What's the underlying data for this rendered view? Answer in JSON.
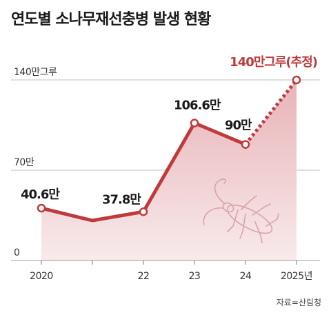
{
  "title": "연도별 소나무재선충병 발생 현황",
  "source": "자료=산림청",
  "colors": {
    "line": "#c0393b",
    "fill_top": "#e8b3b7",
    "fill_bottom": "#f8eaeb",
    "beetle": "#d9a3a6"
  },
  "chart_data": {
    "type": "line",
    "title": "연도별 소나무재선충병 발생 현황",
    "unit": "만그루",
    "ylim": [
      0,
      140
    ],
    "y_ticks": [
      {
        "value": 140,
        "label": "140만그루"
      },
      {
        "value": 70,
        "label": "70만"
      },
      {
        "value": 0,
        "label": "0"
      }
    ],
    "x": [
      2020,
      2021,
      2022,
      2023,
      2024,
      2025
    ],
    "x_tick_labels": [
      "2020",
      "",
      "22",
      "23",
      "24",
      "2025년"
    ],
    "values": [
      40.6,
      31,
      37.8,
      106.6,
      90,
      140
    ],
    "data_labels": [
      "40.6만",
      "",
      "37.8만",
      "106.6만",
      "90만",
      "140만그루(추정)"
    ],
    "estimated_from_index": 4,
    "grid": true
  }
}
